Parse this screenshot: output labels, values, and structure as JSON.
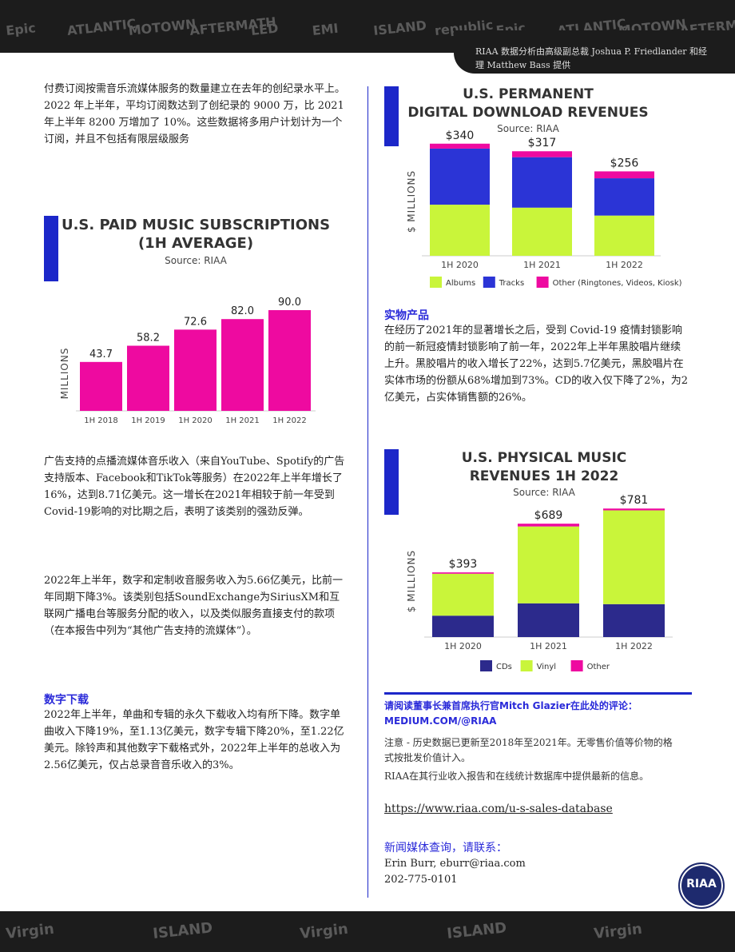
{
  "header": {
    "logos": [
      "Epic",
      "ATLANTIC",
      "MOTOWN",
      "AFTERMATH",
      "LED",
      "EMI",
      "ISLAND",
      "republic",
      "Epic",
      "ATLANTIC",
      "MOTOWN",
      "AFTERMATH"
    ],
    "credit": "RIAA 数据分析由高级副总裁 Joshua P. Friedlander 和经理 Matthew Bass 提供"
  },
  "footer": {
    "logos": [
      "Virgin",
      "ISLAND",
      "Virgin",
      "ISLAND",
      "Virgin"
    ]
  },
  "left_column": {
    "para1": "付费订阅按需音乐流媒体服务的数量建立在去年的创纪录水平上。2022 年上半年，平均订阅数达到了创纪录的 9000 万，比 2021 年上半年 8200 万增加了 10%。这些数据将多用户计划计为一个订阅，并且不包括有限层级服务",
    "para2": "广告支持的点播流媒体音乐收入（来自YouTube、Spotify的广告支持版本、Facebook和TikTok等服务）在2022年上半年增长了16%，达到8.71亿美元。这一增长在2021年相较于前一年受到Covid-19影响的对比期之后，表明了该类别的强劲反弹。",
    "para3": "2022年上半年，数字和定制收音服务收入为5.66亿美元，比前一年同期下降3%。该类别包括SoundExchange为SiriusXM和互联网广播电台等服务分配的收入，以及类似服务直接支付的款项（在本报告中列为“其他广告支持的流媒体”）。",
    "heading_download": "数字下载",
    "para4": "2022年上半年，单曲和专辑的永久下载收入均有所下降。数字单曲收入下降19%，至1.13亿美元，数字专辑下降20%，至1.22亿美元。除铃声和其他数字下载格式外，2022年上半年的总收入为2.56亿美元，仅占总录音音乐收入的3%。"
  },
  "right_column": {
    "heading_physical": "实物产品",
    "para_physical": "在经历了2021年的显著增长之后，受到 Covid-19 疫情封锁影响的前一新冠疫情封锁影响了前一年，2022年上半年黑胶唱片继续上升。黑胶唱片的收入增长了22%，达到5.7亿美元，黑胶唱片在实体市场的份额从68%增加到73%。CD的收入仅下降了2%，为2亿美元，占实体销售额的26%。",
    "quote": "请阅读董事长兼首席执行官Mitch Glazier在此处的评论：MEDIUM.COM/@RIAA",
    "note1": "注意 - 历史数据已更新至2018年至2021年。无零售价值等价物的格式按批发价值计入。",
    "note2": "RIAA在其行业收入报告和在线统计数据库中提供最新的信息。",
    "link": "https://www.riaa.com/u-s-sales-database",
    "media_heading": "新闻媒体查询，请联系：",
    "media_contact": "Erin Burr, eburr@riaa.com 202-775-0101",
    "badge": "RIAA"
  },
  "chart_data": [
    {
      "type": "bar",
      "title": [
        "U.S. PAID MUSIC SUBSCRIPTIONS",
        "(1H AVERAGE)"
      ],
      "source": "Source: RIAA",
      "ylabel": "MILLIONS",
      "categories": [
        "1H 2018",
        "1H 2019",
        "1H 2020",
        "1H 2021",
        "1H 2022"
      ],
      "values": [
        43.7,
        58.2,
        72.6,
        82.0,
        90.0
      ],
      "value_labels": [
        "43.7",
        "58.2",
        "72.6",
        "82.0",
        "90.0"
      ],
      "ylim": [
        0,
        100
      ],
      "color": "#ee0aa0"
    },
    {
      "type": "bar",
      "stacked": true,
      "title": [
        "U.S. PERMANENT",
        "DIGITAL DOWNLOAD REVENUES"
      ],
      "source": "Source: RIAA",
      "ylabel": "$ MILLIONS",
      "categories": [
        "1H 2020",
        "1H 2021",
        "1H 2022"
      ],
      "series": [
        {
          "name": "Albums",
          "values": [
            155,
            146,
            122
          ],
          "color": "#c9f53a"
        },
        {
          "name": "Tracks",
          "values": [
            170,
            153,
            113
          ],
          "color": "#2b34d6"
        },
        {
          "name": "Other (Ringtones, Videos, Kiosk)",
          "values": [
            15,
            18,
            21
          ],
          "color": "#ee0aa0"
        }
      ],
      "totals": [
        "$340",
        "$317",
        "$256"
      ],
      "ylim": [
        0,
        400
      ]
    },
    {
      "type": "bar",
      "stacked": true,
      "title": [
        "U.S. PHYSICAL MUSIC",
        "REVENUES 1H 2022"
      ],
      "source": "Source: RIAA",
      "ylabel": "$ MILLIONS",
      "categories": [
        "1H 2020",
        "1H 2021",
        "1H 2022"
      ],
      "series": [
        {
          "name": "CDs",
          "values": [
            130,
            205,
            200
          ],
          "color": "#2c2a8c"
        },
        {
          "name": "Vinyl",
          "values": [
            255,
            467,
            570
          ],
          "color": "#c9f53a"
        },
        {
          "name": "Other",
          "values": [
            8,
            17,
            11
          ],
          "color": "#ee0aa0"
        }
      ],
      "totals": [
        "$393",
        "$689",
        "$781"
      ],
      "ylim": [
        0,
        850
      ]
    }
  ]
}
